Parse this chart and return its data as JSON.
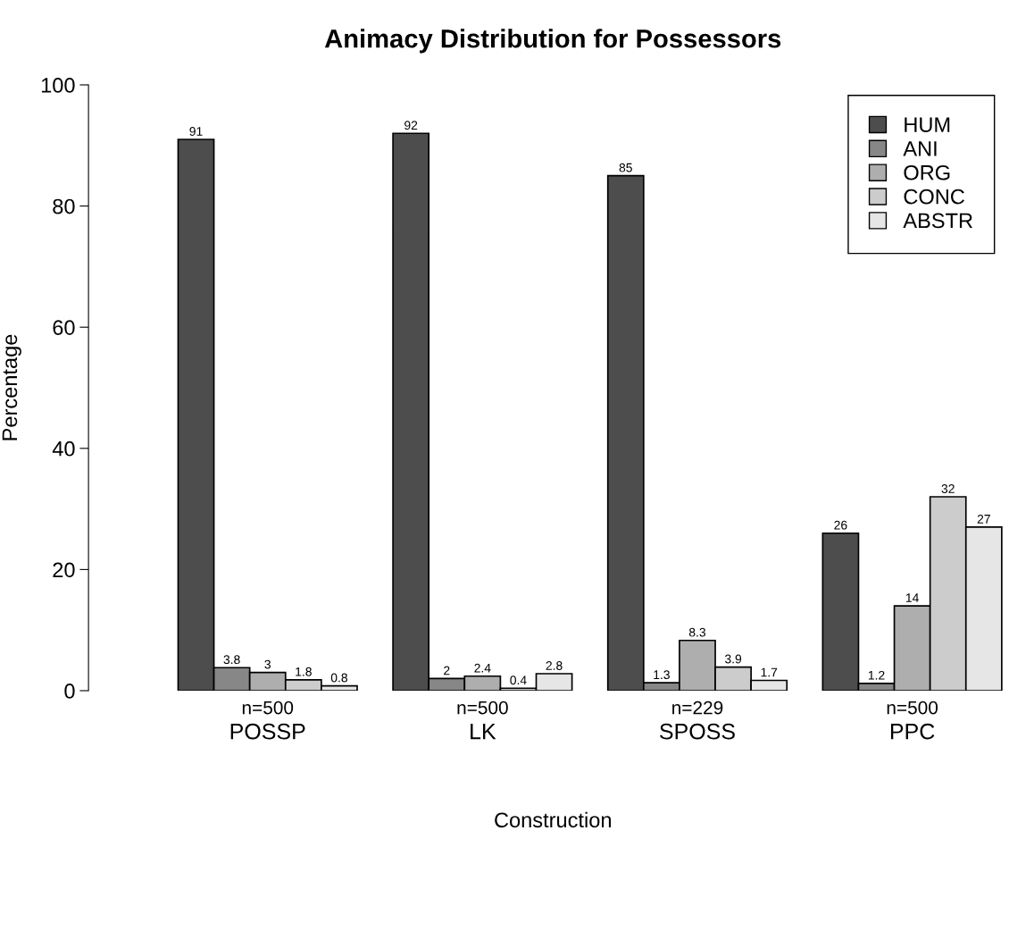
{
  "chart_data": {
    "type": "bar",
    "title": "Animacy Distribution for Possessors",
    "xlabel": "Construction",
    "ylabel": "Percentage",
    "categories": [
      "POSSP",
      "LK",
      "SPOSS",
      "PPC"
    ],
    "series": [
      {
        "name": "HUM",
        "color": "#4d4d4d",
        "values": [
          91,
          92,
          85,
          26
        ]
      },
      {
        "name": "ANI",
        "color": "#878787",
        "values": [
          3.8,
          2,
          1.3,
          1.2
        ]
      },
      {
        "name": "ORG",
        "color": "#aeaeae",
        "values": [
          3,
          2.4,
          8.3,
          14
        ]
      },
      {
        "name": "CONC",
        "color": "#cccccc",
        "values": [
          1.8,
          0.4,
          3.9,
          32
        ]
      },
      {
        "name": "ABSTR",
        "color": "#e6e6e6",
        "values": [
          0.8,
          2.8,
          1.7,
          27
        ]
      }
    ],
    "annotations": [
      "n=500",
      "n=500",
      "n=229",
      "n=500"
    ],
    "ylim": [
      0,
      100
    ],
    "yticks": [
      0,
      20,
      40,
      60,
      80,
      100
    ],
    "grid": false,
    "legend": "top right",
    "data_labels": true
  }
}
